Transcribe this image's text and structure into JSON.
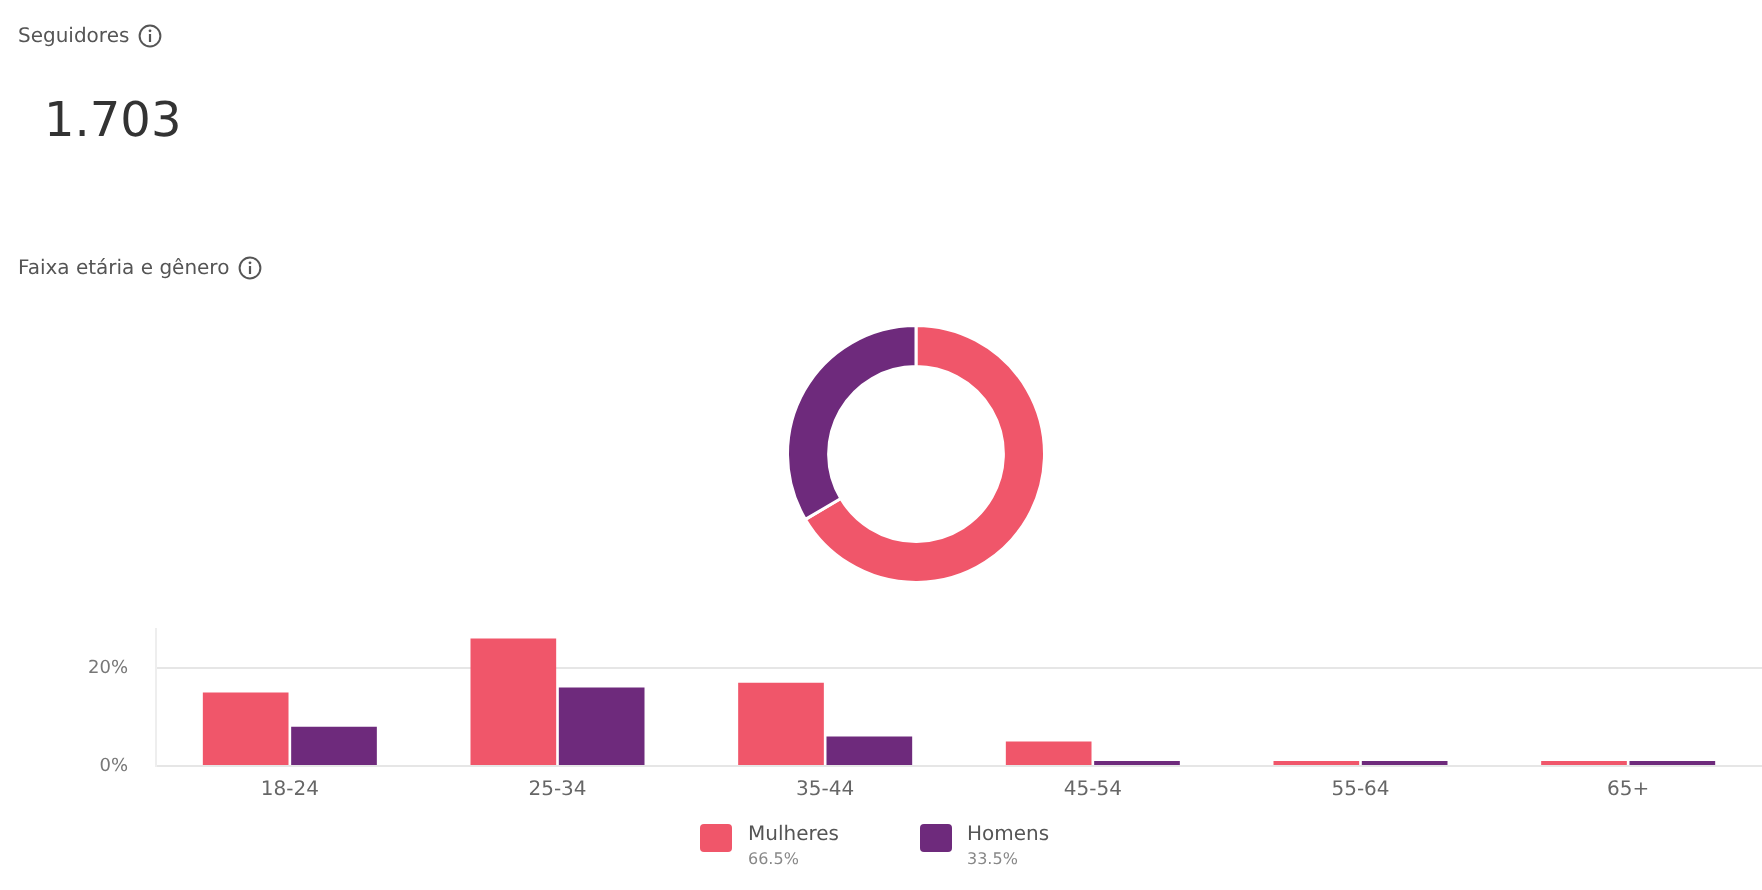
{
  "chart_data": [
    {
      "type": "other",
      "title": "Seguidores",
      "annotations": [
        "1.703",
        "Faixa etária e gênero"
      ]
    },
    {
      "type": "donut",
      "categories": [
        null,
        null
      ],
      "values": [
        66.5,
        33.5
      ],
      "colors": [
        "#f0566a",
        "#6e2a7c"
      ],
      "value_labels": [
        "66.5%",
        "33.5%"
      ]
    },
    {
      "type": "bar",
      "categories": [
        "18-24",
        "25-34",
        "35-44",
        "45-54",
        "55-64",
        "65+"
      ],
      "ylim": [
        0,
        28
      ],
      "yticks": [
        {
          "value": 0,
          "label": "0%"
        },
        {
          "value": 20,
          "label": "20%"
        }
      ],
      "grid": "y",
      "legend": "bottom",
      "series": [
        {
          "name": "Mulheres",
          "color": "#f0566a",
          "values": [
            15,
            26,
            17,
            5,
            1,
            1
          ]
        },
        {
          "name": "Homens",
          "color": "#6e2a7c",
          "values": [
            8,
            16,
            6,
            1,
            1,
            1
          ]
        }
      ]
    }
  ]
}
